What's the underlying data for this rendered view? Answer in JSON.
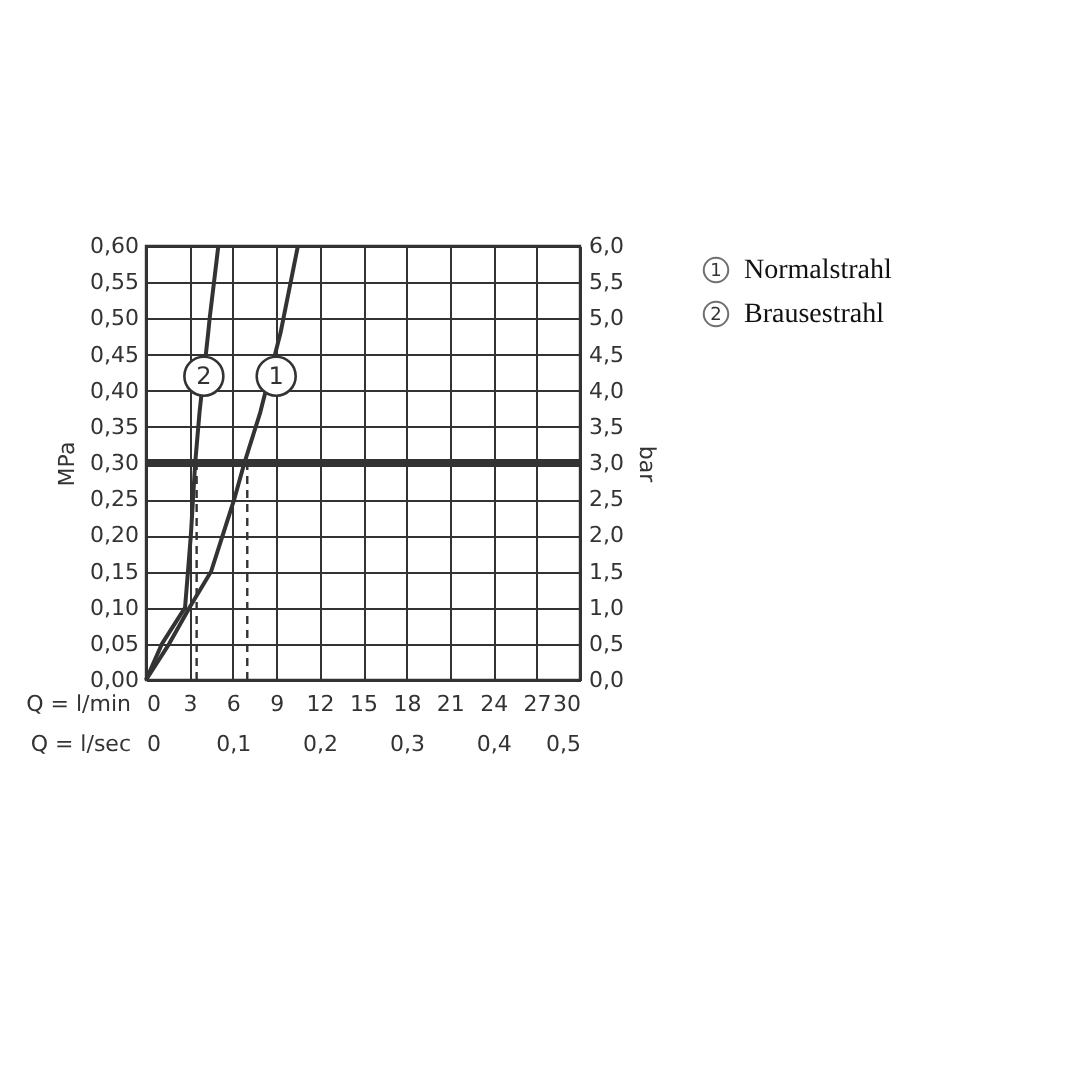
{
  "chart_data": {
    "type": "line",
    "xlabel": "Q = l/min",
    "x2label": "Q = l/sec",
    "ylabel": "MPa",
    "y2label": "bar",
    "xlim": [
      0,
      30
    ],
    "xticks": [
      0,
      3,
      6,
      9,
      12,
      15,
      18,
      21,
      24,
      27,
      30
    ],
    "x2lim": [
      0,
      0.5
    ],
    "x2ticks": [
      {
        "value": 0,
        "label": "0"
      },
      {
        "value": 0.1,
        "label": "0,1"
      },
      {
        "value": 0.2,
        "label": "0,2"
      },
      {
        "value": 0.3,
        "label": "0,3"
      },
      {
        "value": 0.4,
        "label": "0,4"
      },
      {
        "value": 0.5,
        "label": "0,5"
      }
    ],
    "ylim": [
      0,
      0.6
    ],
    "yticks": [
      {
        "value": 0,
        "label": "0,00"
      },
      {
        "value": 0.05,
        "label": "0,05"
      },
      {
        "value": 0.1,
        "label": "0,10"
      },
      {
        "value": 0.15,
        "label": "0,15"
      },
      {
        "value": 0.2,
        "label": "0,20"
      },
      {
        "value": 0.25,
        "label": "0,25"
      },
      {
        "value": 0.3,
        "label": "0,30"
      },
      {
        "value": 0.35,
        "label": "0,35"
      },
      {
        "value": 0.4,
        "label": "0,40"
      },
      {
        "value": 0.45,
        "label": "0,45"
      },
      {
        "value": 0.5,
        "label": "0,50"
      },
      {
        "value": 0.55,
        "label": "0,55"
      },
      {
        "value": 0.6,
        "label": "0,60"
      }
    ],
    "y2lim": [
      0,
      6
    ],
    "y2ticks": [
      {
        "value": 0,
        "label": "0,0"
      },
      {
        "value": 0.5,
        "label": "0,5"
      },
      {
        "value": 1,
        "label": "1,0"
      },
      {
        "value": 1.5,
        "label": "1,5"
      },
      {
        "value": 2,
        "label": "2,0"
      },
      {
        "value": 2.5,
        "label": "2,5"
      },
      {
        "value": 3,
        "label": "3,0"
      },
      {
        "value": 3.5,
        "label": "3,5"
      },
      {
        "value": 4,
        "label": "4,0"
      },
      {
        "value": 4.5,
        "label": "4,5"
      },
      {
        "value": 5,
        "label": "5,0"
      },
      {
        "value": 5.5,
        "label": "5,5"
      },
      {
        "value": 6,
        "label": "6,0"
      }
    ],
    "grid": true,
    "legend": "right",
    "series": [
      {
        "name": "Normalstrahl",
        "color": "#333333",
        "x": [
          0,
          1.6,
          3.0,
          4.5,
          5.3,
          6.1,
          6.8,
          7.9,
          9.3,
          9.5,
          10.5
        ],
        "values": [
          0,
          0.05,
          0.1,
          0.15,
          0.2,
          0.25,
          0.3,
          0.37,
          0.48,
          0.5,
          0.6
        ]
      },
      {
        "name": "Brausestrahl",
        "color": "#333333",
        "x": [
          0,
          1.1,
          2.7,
          3.1,
          3.4,
          3.7,
          4.3,
          4.4,
          5.0
        ],
        "values": [
          0,
          0.05,
          0.1,
          0.2,
          0.3,
          0.37,
          0.48,
          0.5,
          0.6
        ]
      }
    ],
    "ref_lines": [
      {
        "axis": "y",
        "value": 0.3,
        "color": "#333333"
      },
      {
        "axis": "x",
        "value": 3.5,
        "color": "#333333",
        "line_style": "dashed"
      },
      {
        "axis": "x",
        "value": 7.0,
        "color": "#333333",
        "line_style": "dashed"
      }
    ],
    "annotations": [
      {
        "text": "1",
        "x": 9.0,
        "y": 0.42
      },
      {
        "text": "2",
        "x": 4.0,
        "y": 0.42
      }
    ]
  }
}
